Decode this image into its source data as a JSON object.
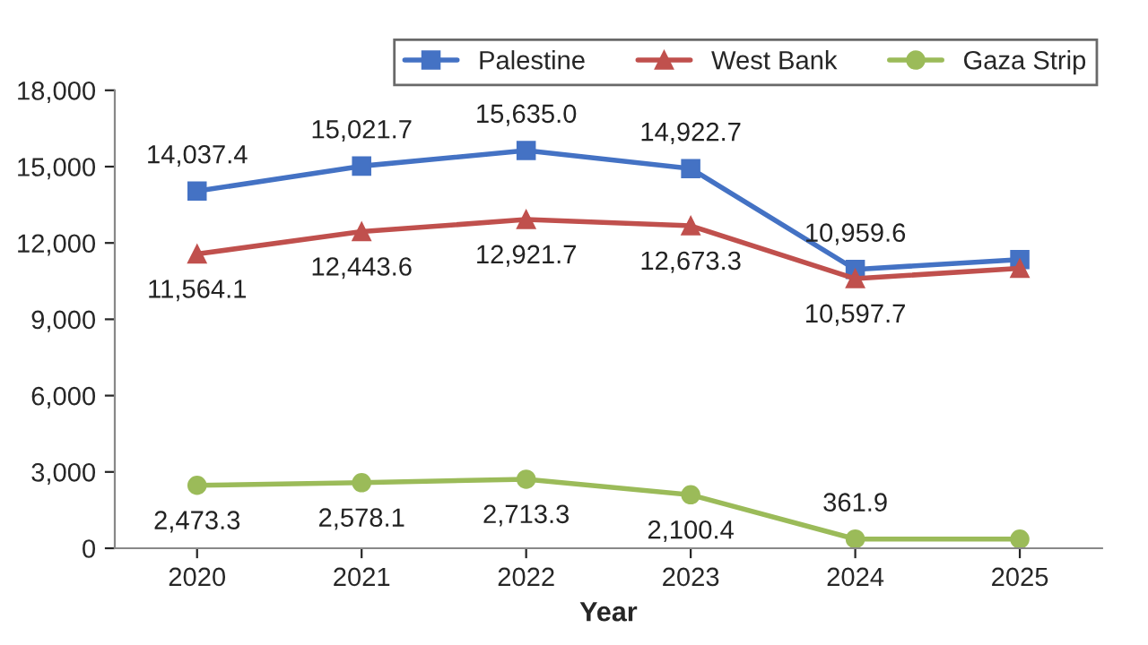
{
  "chart_data": {
    "type": "line",
    "xlabel": "Year",
    "categories": [
      "2020",
      "2021",
      "2022",
      "2023",
      "2024",
      "2025"
    ],
    "series": [
      {
        "name": "Palestine",
        "color": "#4472c4",
        "marker": "square",
        "values": [
          14037.4,
          15021.7,
          15635.0,
          14922.7,
          10959.6,
          11350
        ],
        "value_labels": [
          "14,037.4",
          "15,021.7",
          "15,635.0",
          "14,922.7",
          "10,959.6",
          null
        ]
      },
      {
        "name": "West Bank",
        "color": "#c0504d",
        "marker": "triangle",
        "values": [
          11564.1,
          12443.6,
          12921.7,
          12673.3,
          10597.7,
          11000
        ],
        "value_labels": [
          "11,564.1",
          "12,443.6",
          "12,921.7",
          "12,673.3",
          "10,597.7",
          null
        ]
      },
      {
        "name": "Gaza Strip",
        "color": "#9bbb59",
        "marker": "circle",
        "values": [
          2473.3,
          2578.1,
          2713.3,
          2100.4,
          361.9,
          360
        ],
        "value_labels": [
          "2,473.3",
          "2,578.1",
          "2,713.3",
          "2,100.4",
          "361.9",
          null
        ]
      }
    ],
    "ylim": [
      0,
      18000
    ],
    "yticks": [
      {
        "value": 0,
        "label": "0"
      },
      {
        "value": 3000,
        "label": "3,000"
      },
      {
        "value": 6000,
        "label": "6,000"
      },
      {
        "value": 9000,
        "label": "9,000"
      },
      {
        "value": 12000,
        "label": "12,000"
      },
      {
        "value": 15000,
        "label": "15,000"
      },
      {
        "value": 18000,
        "label": "18,000"
      }
    ],
    "grid": false,
    "legend": "top right",
    "line_style": "solid"
  }
}
